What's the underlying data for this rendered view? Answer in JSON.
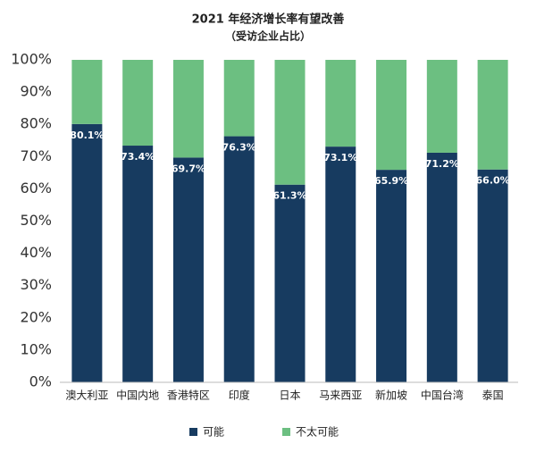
{
  "chart_data": {
    "type": "stacked_bar",
    "title": "2021 年经济增长率有望改善",
    "subtitle": "（受访企业占比）",
    "categories": [
      "澳大利亚",
      "中国内地",
      "香港特区",
      "印度",
      "日本",
      "马来西亚",
      "新加坡",
      "中国台湾",
      "泰国"
    ],
    "series": [
      {
        "name": "可能",
        "color": "#173b60",
        "values": [
          80.1,
          73.4,
          69.7,
          76.3,
          61.3,
          73.1,
          65.9,
          71.2,
          66.0
        ],
        "value_labels": [
          "80.1%",
          "73.4%",
          "69.7%",
          "76.3%",
          "61.3%",
          "73.1%",
          "65.9%",
          "71.2%",
          "66.0%"
        ]
      },
      {
        "name": "不太可能",
        "color": "#6cbf81",
        "values": [
          19.9,
          26.6,
          30.3,
          23.7,
          38.7,
          26.9,
          34.1,
          28.8,
          34.0
        ]
      }
    ],
    "ylim": [
      0,
      100
    ],
    "yticks": [
      {
        "value": 0,
        "label": "0%"
      },
      {
        "value": 10,
        "label": "10%"
      },
      {
        "value": 20,
        "label": "20%"
      },
      {
        "value": 30,
        "label": "30%"
      },
      {
        "value": 40,
        "label": "40%"
      },
      {
        "value": 50,
        "label": "50%"
      },
      {
        "value": 60,
        "label": "60%"
      },
      {
        "value": 70,
        "label": "70%"
      },
      {
        "value": 80,
        "label": "80%"
      },
      {
        "value": 90,
        "label": "90%"
      },
      {
        "value": 100,
        "label": "100%"
      }
    ],
    "legend": "bottom"
  }
}
